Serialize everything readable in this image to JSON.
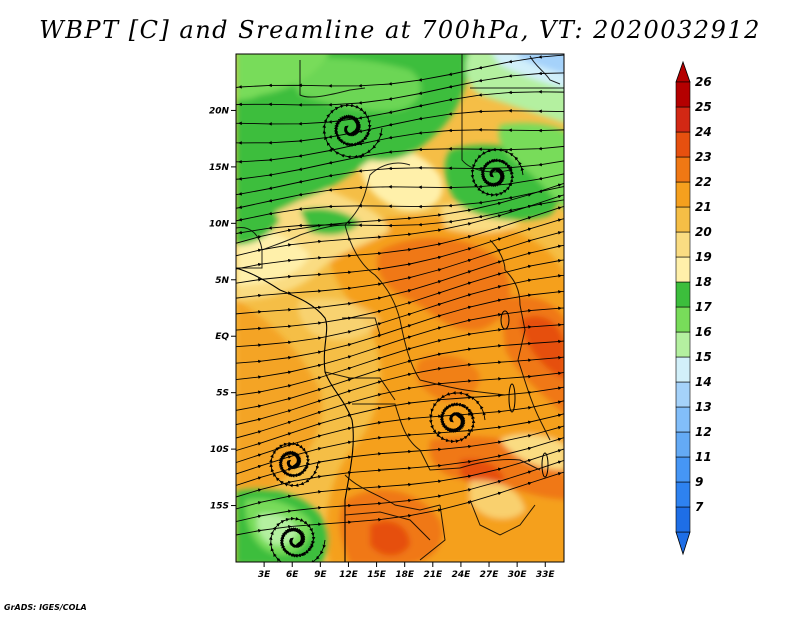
{
  "title": "WBPT [C] and Sreamline at 700hPa, VT: 2020032912",
  "credit": "GrADS: IGES/COLA",
  "map": {
    "lon_range": [
      0,
      35
    ],
    "lat_range": [
      -20,
      25
    ],
    "lat_labels": [
      {
        "lat": 20,
        "text": "20N"
      },
      {
        "lat": 15,
        "text": "15N"
      },
      {
        "lat": 10,
        "text": "10N"
      },
      {
        "lat": 5,
        "text": "5N"
      },
      {
        "lat": 0,
        "text": "EQ"
      },
      {
        "lat": -5,
        "text": "5S"
      },
      {
        "lat": -10,
        "text": "10S"
      },
      {
        "lat": -15,
        "text": "15S"
      }
    ],
    "lon_labels": [
      {
        "lon": 3,
        "text": "3E"
      },
      {
        "lon": 6,
        "text": "6E"
      },
      {
        "lon": 9,
        "text": "9E"
      },
      {
        "lon": 12,
        "text": "12E"
      },
      {
        "lon": 15,
        "text": "15E"
      },
      {
        "lon": 18,
        "text": "18E"
      },
      {
        "lon": 21,
        "text": "21E"
      },
      {
        "lon": 24,
        "text": "24E"
      },
      {
        "lon": 27,
        "text": "27E"
      },
      {
        "lon": 30,
        "text": "30E"
      },
      {
        "lon": 33,
        "text": "33E"
      }
    ]
  },
  "colorbar": {
    "labels": [
      "7",
      "9",
      "11",
      "12",
      "13",
      "14",
      "15",
      "16",
      "17",
      "18",
      "19",
      "20",
      "21",
      "22",
      "23",
      "24",
      "25",
      "26"
    ],
    "colors": [
      "#1e6ee6",
      "#2e82f0",
      "#4696f5",
      "#64aaf5",
      "#82befa",
      "#a5d2fa",
      "#d2f0fa",
      "#b4f0a0",
      "#78dc5a",
      "#3cbe3c",
      "#fff0aa",
      "#fadc82",
      "#f5be46",
      "#f5a01e",
      "#f07814",
      "#e6500f",
      "#d22814",
      "#b40000"
    ],
    "below_color": "#1e6ee6",
    "above_color": "#b40000"
  }
}
